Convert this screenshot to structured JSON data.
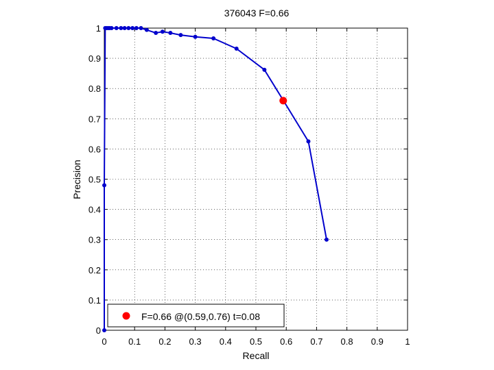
{
  "chart_data": {
    "type": "line",
    "title": "376043 F=0.66",
    "xlabel": "Recall",
    "ylabel": "Precision",
    "xlim": [
      0,
      1
    ],
    "ylim": [
      0,
      1
    ],
    "x_ticks": [
      "0",
      "0.1",
      "0.2",
      "0.3",
      "0.4",
      "0.5",
      "0.6",
      "0.7",
      "0.8",
      "0.9",
      "1"
    ],
    "y_ticks": [
      "0",
      "0.1",
      "0.2",
      "0.3",
      "0.4",
      "0.5",
      "0.6",
      "0.7",
      "0.8",
      "0.9",
      "1"
    ],
    "grid": true,
    "series": [
      {
        "color": "#0000cc",
        "points": [
          [
            0.0,
            0.0
          ],
          [
            0.0,
            0.48
          ],
          [
            0.003,
            1.0
          ],
          [
            0.008,
            1.0
          ],
          [
            0.013,
            1.0
          ],
          [
            0.018,
            1.0
          ],
          [
            0.024,
            1.0
          ],
          [
            0.04,
            1.0
          ],
          [
            0.055,
            1.0
          ],
          [
            0.067,
            1.0
          ],
          [
            0.08,
            1.0
          ],
          [
            0.093,
            1.0
          ],
          [
            0.106,
            1.0
          ],
          [
            0.121,
            1.0
          ],
          [
            0.14,
            0.994
          ],
          [
            0.17,
            0.984
          ],
          [
            0.192,
            0.988
          ],
          [
            0.218,
            0.984
          ],
          [
            0.252,
            0.977
          ],
          [
            0.3,
            0.971
          ],
          [
            0.36,
            0.966
          ],
          [
            0.436,
            0.932
          ],
          [
            0.528,
            0.862
          ],
          [
            0.592,
            0.758
          ],
          [
            0.673,
            0.625
          ],
          [
            0.733,
            0.3
          ]
        ]
      }
    ],
    "best_point": {
      "x": 0.59,
      "y": 0.76,
      "color": "#ff0000"
    },
    "legend": {
      "position": "bottom-left",
      "entry": "F=0.66 @(0.59,0.76) t=0.08"
    }
  }
}
